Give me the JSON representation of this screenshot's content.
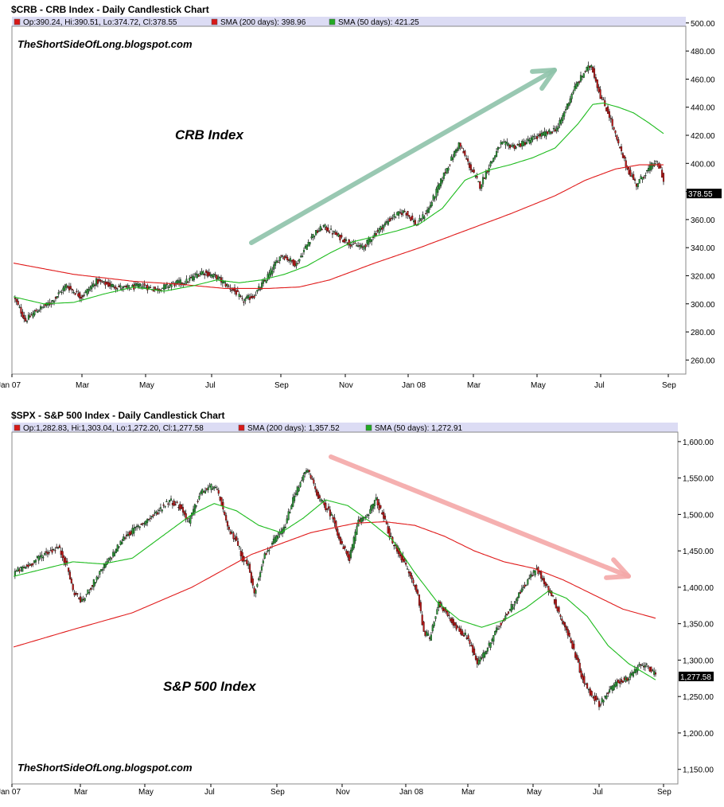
{
  "chart_data": [
    {
      "type": "candlestick",
      "title": "$CRB - CRB Index - Daily Candlestick Chart",
      "legend": {
        "ohlc": "Op:390.24, Hi:390.51, Lo:374.72, Cl:378.55",
        "sma200": "SMA (200 days): 398.96",
        "sma50": "SMA (50 days): 421.25"
      },
      "watermark": "TheShortSideOfLong.blogspot.com",
      "annotation": "CRB Index",
      "last_label": "378.55",
      "xlabels": [
        "Jan 07",
        "Mar",
        "May",
        "Jul",
        "Sep",
        "Nov",
        "Jan 08",
        "Mar",
        "May",
        "Jul",
        "Sep"
      ],
      "yticks": [
        260,
        280,
        300,
        320,
        340,
        360,
        380,
        400,
        420,
        440,
        460,
        480,
        500
      ],
      "ytick_labels": [
        "260.00",
        "280.00",
        "300.00",
        "320.00",
        "340.00",
        "360.00",
        "380.00",
        "400.00",
        "420.00",
        "440.00",
        "460.00",
        "480.00",
        "500.00"
      ],
      "ylim": [
        250,
        505
      ],
      "anchors_close": [
        [
          0,
          305
        ],
        [
          8,
          288
        ],
        [
          15,
          295
        ],
        [
          25,
          301
        ],
        [
          35,
          313
        ],
        [
          45,
          305
        ],
        [
          55,
          316
        ],
        [
          65,
          313
        ],
        [
          75,
          311
        ],
        [
          85,
          313
        ],
        [
          95,
          310
        ],
        [
          105,
          314
        ],
        [
          115,
          316
        ],
        [
          125,
          323
        ],
        [
          135,
          319
        ],
        [
          142,
          313
        ],
        [
          148,
          308
        ],
        [
          152,
          302
        ],
        [
          160,
          306
        ],
        [
          168,
          318
        ],
        [
          178,
          335
        ],
        [
          188,
          328
        ],
        [
          198,
          348
        ],
        [
          206,
          355
        ],
        [
          216,
          348
        ],
        [
          224,
          343
        ],
        [
          232,
          340
        ],
        [
          242,
          352
        ],
        [
          252,
          362
        ],
        [
          260,
          366
        ],
        [
          268,
          356
        ],
        [
          276,
          368
        ],
        [
          286,
          392
        ],
        [
          296,
          414
        ],
        [
          304,
          396
        ],
        [
          310,
          384
        ],
        [
          316,
          398
        ],
        [
          324,
          414
        ],
        [
          334,
          412
        ],
        [
          342,
          416
        ],
        [
          350,
          420
        ],
        [
          356,
          422
        ],
        [
          362,
          426
        ],
        [
          372,
          452
        ],
        [
          380,
          466
        ],
        [
          384,
          470
        ],
        [
          390,
          448
        ],
        [
          396,
          434
        ],
        [
          402,
          413
        ],
        [
          408,
          396
        ],
        [
          414,
          385
        ],
        [
          420,
          393
        ],
        [
          426,
          401
        ],
        [
          430,
          396
        ],
        [
          434,
          378.55
        ]
      ],
      "anchors_sma50": [
        [
          0,
          305
        ],
        [
          20,
          300
        ],
        [
          40,
          301
        ],
        [
          60,
          307
        ],
        [
          80,
          312
        ],
        [
          100,
          309
        ],
        [
          120,
          313
        ],
        [
          135,
          317
        ],
        [
          150,
          315
        ],
        [
          165,
          317
        ],
        [
          180,
          321
        ],
        [
          195,
          327
        ],
        [
          210,
          336
        ],
        [
          225,
          344
        ],
        [
          240,
          348
        ],
        [
          255,
          352
        ],
        [
          270,
          357
        ],
        [
          285,
          368
        ],
        [
          300,
          388
        ],
        [
          315,
          395
        ],
        [
          330,
          399
        ],
        [
          345,
          404
        ],
        [
          360,
          411
        ],
        [
          375,
          428
        ],
        [
          385,
          442
        ],
        [
          392,
          443
        ],
        [
          402,
          440
        ],
        [
          412,
          436
        ],
        [
          422,
          429
        ],
        [
          432,
          421.25
        ]
      ],
      "anchors_sma200": [
        [
          0,
          329
        ],
        [
          40,
          321
        ],
        [
          80,
          316
        ],
        [
          110,
          314
        ],
        [
          140,
          311
        ],
        [
          170,
          311
        ],
        [
          190,
          312
        ],
        [
          210,
          317
        ],
        [
          240,
          329
        ],
        [
          270,
          340
        ],
        [
          300,
          352
        ],
        [
          330,
          364
        ],
        [
          360,
          377
        ],
        [
          380,
          388
        ],
        [
          400,
          396
        ],
        [
          416,
          399
        ],
        [
          432,
          398.96
        ]
      ]
    },
    {
      "type": "candlestick",
      "title": "$SPX - S&P 500 Index - Daily Candlestick Chart",
      "legend": {
        "ohlc": "Op:1,282.83, Hi:1,303.04, Lo:1,272.20, Cl:1,277.58",
        "sma200": "SMA (200 days): 1,357.52",
        "sma50": "SMA (50 days): 1,272.91"
      },
      "watermark": "TheShortSideOfLong.blogspot.com",
      "annotation": "S&P 500 Index",
      "last_label": "1,277.58",
      "xlabels": [
        "Jan 07",
        "Mar",
        "May",
        "Jul",
        "Sep",
        "Nov",
        "Jan 08",
        "Mar",
        "May",
        "Jul",
        "Sep"
      ],
      "yticks": [
        1150,
        1200,
        1250,
        1300,
        1350,
        1400,
        1450,
        1500,
        1550,
        1600
      ],
      "ytick_labels": [
        "1,150.00",
        "1,200.00",
        "1,250.00",
        "1,300.00",
        "1,350.00",
        "1,400.00",
        "1,450.00",
        "1,500.00",
        "1,550.00",
        "1,600.00"
      ],
      "ylim": [
        1130,
        1625
      ],
      "anchors_close": [
        [
          0,
          1420
        ],
        [
          10,
          1430
        ],
        [
          20,
          1445
        ],
        [
          30,
          1455
        ],
        [
          36,
          1430
        ],
        [
          40,
          1395
        ],
        [
          46,
          1380
        ],
        [
          55,
          1410
        ],
        [
          65,
          1440
        ],
        [
          75,
          1470
        ],
        [
          85,
          1485
        ],
        [
          95,
          1500
        ],
        [
          105,
          1520
        ],
        [
          112,
          1510
        ],
        [
          118,
          1490
        ],
        [
          126,
          1530
        ],
        [
          135,
          1540
        ],
        [
          140,
          1515
        ],
        [
          144,
          1480
        ],
        [
          150,
          1465
        ],
        [
          154,
          1440
        ],
        [
          158,
          1430
        ],
        [
          162,
          1390
        ],
        [
          168,
          1440
        ],
        [
          174,
          1460
        ],
        [
          182,
          1480
        ],
        [
          188,
          1520
        ],
        [
          194,
          1550
        ],
        [
          198,
          1560
        ],
        [
          202,
          1540
        ],
        [
          206,
          1520
        ],
        [
          212,
          1505
        ],
        [
          216,
          1490
        ],
        [
          220,
          1460
        ],
        [
          226,
          1440
        ],
        [
          232,
          1490
        ],
        [
          238,
          1500
        ],
        [
          244,
          1520
        ],
        [
          250,
          1490
        ],
        [
          255,
          1460
        ],
        [
          260,
          1445
        ],
        [
          266,
          1420
        ],
        [
          272,
          1390
        ],
        [
          276,
          1340
        ],
        [
          280,
          1330
        ],
        [
          286,
          1380
        ],
        [
          292,
          1360
        ],
        [
          300,
          1340
        ],
        [
          306,
          1330
        ],
        [
          312,
          1295
        ],
        [
          320,
          1320
        ],
        [
          326,
          1345
        ],
        [
          334,
          1370
        ],
        [
          340,
          1390
        ],
        [
          346,
          1410
        ],
        [
          352,
          1425
        ],
        [
          358,
          1405
        ],
        [
          364,
          1380
        ],
        [
          370,
          1350
        ],
        [
          376,
          1320
        ],
        [
          382,
          1280
        ],
        [
          386,
          1260
        ],
        [
          390,
          1250
        ],
        [
          394,
          1240
        ],
        [
          400,
          1255
        ],
        [
          406,
          1270
        ],
        [
          414,
          1275
        ],
        [
          420,
          1290
        ],
        [
          426,
          1295
        ],
        [
          432,
          1277.58
        ]
      ],
      "anchors_sma50": [
        [
          0,
          1415
        ],
        [
          20,
          1425
        ],
        [
          40,
          1435
        ],
        [
          60,
          1432
        ],
        [
          80,
          1440
        ],
        [
          100,
          1470
        ],
        [
          120,
          1500
        ],
        [
          135,
          1515
        ],
        [
          150,
          1505
        ],
        [
          165,
          1485
        ],
        [
          180,
          1475
        ],
        [
          195,
          1495
        ],
        [
          210,
          1520
        ],
        [
          225,
          1512
        ],
        [
          240,
          1490
        ],
        [
          255,
          1465
        ],
        [
          270,
          1420
        ],
        [
          285,
          1380
        ],
        [
          300,
          1355
        ],
        [
          315,
          1345
        ],
        [
          330,
          1355
        ],
        [
          345,
          1372
        ],
        [
          360,
          1395
        ],
        [
          372,
          1385
        ],
        [
          386,
          1360
        ],
        [
          400,
          1320
        ],
        [
          414,
          1295
        ],
        [
          432,
          1272.91
        ]
      ],
      "anchors_sma200": [
        [
          0,
          1318
        ],
        [
          40,
          1342
        ],
        [
          80,
          1365
        ],
        [
          120,
          1400
        ],
        [
          160,
          1445
        ],
        [
          200,
          1475
        ],
        [
          230,
          1488
        ],
        [
          250,
          1490
        ],
        [
          270,
          1485
        ],
        [
          290,
          1470
        ],
        [
          310,
          1450
        ],
        [
          330,
          1435
        ],
        [
          350,
          1426
        ],
        [
          370,
          1410
        ],
        [
          390,
          1390
        ],
        [
          410,
          1370
        ],
        [
          432,
          1357.52
        ]
      ]
    }
  ]
}
